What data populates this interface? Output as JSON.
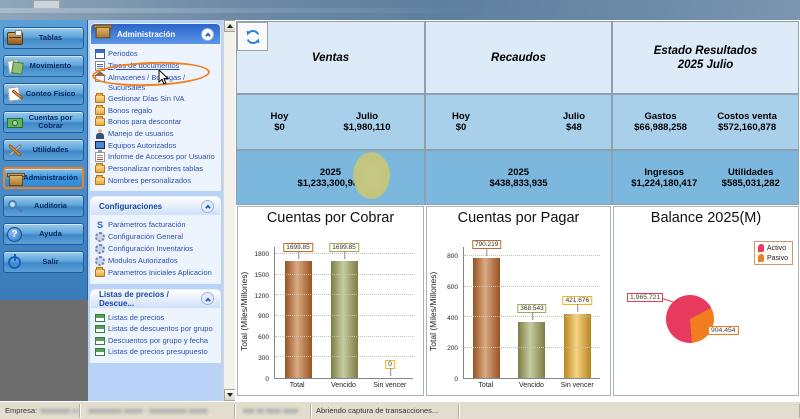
{
  "window": {
    "top_band": "decorative sky texture"
  },
  "sidebar": {
    "items": [
      {
        "label": "Tablas",
        "icon": "cabinet-icon"
      },
      {
        "label": "Movimiento",
        "icon": "sheets-icon"
      },
      {
        "label": "Conteo Fisico",
        "icon": "note-pencil-icon"
      },
      {
        "label": "Cuentas por Cobrar",
        "icon": "cash-icon"
      },
      {
        "label": "Utilidades",
        "icon": "tools-icon"
      },
      {
        "label": "Administración",
        "icon": "box-icon",
        "active": true
      },
      {
        "label": "Auditoria",
        "icon": "magnifier-icon"
      },
      {
        "label": "Ayuda",
        "icon": "help-icon"
      },
      {
        "label": "Salir",
        "icon": "power-icon"
      }
    ]
  },
  "menu": {
    "admin": {
      "title": "Administración",
      "items": [
        {
          "label": "Periodos",
          "icon": "calendar-icon"
        },
        {
          "label": "Tipos de documentos",
          "icon": "document-icon",
          "highlighted": true
        },
        {
          "label": "Almacenes / Bodegas / Sucursales",
          "icon": "home-icon"
        },
        {
          "label": "Gestionar Días Sin IVA",
          "icon": "folder-icon"
        },
        {
          "label": "Bonos regalo",
          "icon": "folder-icon"
        },
        {
          "label": "Bonos para descontar",
          "icon": "folder-icon"
        },
        {
          "label": "Manejo de usuarios",
          "icon": "user-icon"
        },
        {
          "label": "Equipos Autorizados",
          "icon": "monitor-icon"
        },
        {
          "label": "Informe de Accesos por Usuario",
          "icon": "report-icon"
        },
        {
          "label": "Personalizar nombres tablas",
          "icon": "folder-icon"
        },
        {
          "label": "Nombres personalizados",
          "icon": "folder-icon"
        }
      ]
    },
    "config": {
      "title": "Configuraciones",
      "items": [
        {
          "label": "Parámetros facturación",
          "icon": "sigma-icon"
        },
        {
          "label": "Configuración General",
          "icon": "gear-icon"
        },
        {
          "label": "Configuración Inventarios",
          "icon": "gear-icon"
        },
        {
          "label": "Modulos Autorizados",
          "icon": "gear-icon"
        },
        {
          "label": "Parametros Iniciales Aplicacion",
          "icon": "folder-icon"
        }
      ]
    },
    "listas": {
      "title": "Listas de precios / Descue...",
      "items": [
        {
          "label": "Listas de precios",
          "icon": "pricelist-icon"
        },
        {
          "label": "Listas de descuentos por grupo",
          "icon": "pricelist-icon"
        },
        {
          "label": "Descuentos por grupo y fecha",
          "icon": "pricelist-icon"
        },
        {
          "label": "Listas de precios presupuesto",
          "icon": "pricelist-icon"
        }
      ]
    }
  },
  "summary": {
    "ventas": {
      "title": "Ventas",
      "hoy_label": "Hoy",
      "hoy_value": "$0",
      "mes_label": "Julio",
      "mes_value": "$1,980,110",
      "year_label": "2025",
      "year_value": "$1,233,300,985"
    },
    "recaudos": {
      "title": "Recaudos",
      "hoy_label": "Hoy",
      "hoy_value": "$0",
      "mes_label": "Julio",
      "mes_value": "$48",
      "year_label": "2025",
      "year_value": "$438,833,935"
    },
    "estado": {
      "title_line1": "Estado Resultados",
      "title_line2": "2025 Julio",
      "gastos_label": "Gastos",
      "gastos_value": "$66,988,258",
      "costos_label": "Costos venta",
      "costos_value": "$572,160,878",
      "ingresos_label": "Ingresos",
      "ingresos_value": "$1,224,180,417",
      "utilidades_label": "Utilidades",
      "utilidades_value": "$585,031,282"
    }
  },
  "chart_data": [
    {
      "type": "bar",
      "title": "Cuentas por Cobrar",
      "ylabel": "Total (Miles/Millones)",
      "categories": [
        "Total",
        "Vencido",
        "Sin vencer"
      ],
      "values": [
        1699.85,
        1699.85,
        0
      ],
      "value_labels": [
        "1699.85",
        "1699.85",
        "0"
      ],
      "yticks": [
        0,
        300,
        600,
        900,
        1200,
        1500,
        1800
      ],
      "ylim": [
        0,
        1900
      ],
      "bar_colors": [
        "#bf6d2e",
        "#9aa95f",
        "#eeb52c"
      ],
      "grid": true,
      "legend_position": "none"
    },
    {
      "type": "bar",
      "title": "Cuentas por Pagar",
      "ylabel": "Total (Miles/Millones)",
      "categories": [
        "Total",
        "Vencido",
        "Sin vencer"
      ],
      "values": [
        790.219,
        368.543,
        421.676
      ],
      "value_labels": [
        "790.219",
        "368.543",
        "421.676"
      ],
      "yticks": [
        0,
        200,
        400,
        600,
        800
      ],
      "ylim": [
        0,
        860
      ],
      "bar_colors": [
        "#bf6d2e",
        "#9aa95f",
        "#eeb52c"
      ],
      "grid": true,
      "legend_position": "none"
    },
    {
      "type": "pie",
      "title": "Balance 2025(M)",
      "legend": [
        "Activo",
        "Pasivo"
      ],
      "values": [
        1965.721,
        904.454
      ],
      "value_labels": [
        "1,965.721",
        "904.454"
      ],
      "colors": [
        "#e8395e",
        "#f07d1e"
      ],
      "legend_position": "top-right"
    }
  ],
  "status_bar": {
    "empresa_label": "Empresa:",
    "empresa_value": "xxxxxxxx x.x.x",
    "segment2": "xxxxxxxxx xxxxx - xxxxxxxxxx xxxxx",
    "segment3": "xxx xx xxxx xxxx",
    "message": "Abriendo captura de transacciones..."
  }
}
